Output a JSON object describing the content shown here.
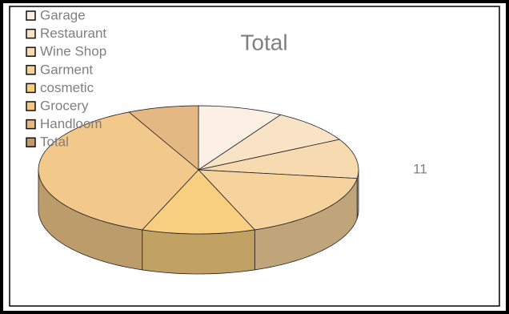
{
  "chart_data": {
    "type": "pie",
    "title": "Total",
    "categories": [
      "Garage",
      "Restaurant",
      "Wine Shop",
      "Garment",
      "cosmetic",
      "Grocery",
      "Handloom",
      "Total"
    ],
    "values": [
      3,
      3,
      3.5,
      6,
      4,
      13,
      2.5,
      0
    ],
    "colors": [
      "#fcefe3",
      "#f9e3c6",
      "#f8dab0",
      "#f6d29c",
      "#f8cf80",
      "#f2c88b",
      "#e3b883",
      "#c49a68"
    ],
    "annotations": [
      "11"
    ]
  }
}
